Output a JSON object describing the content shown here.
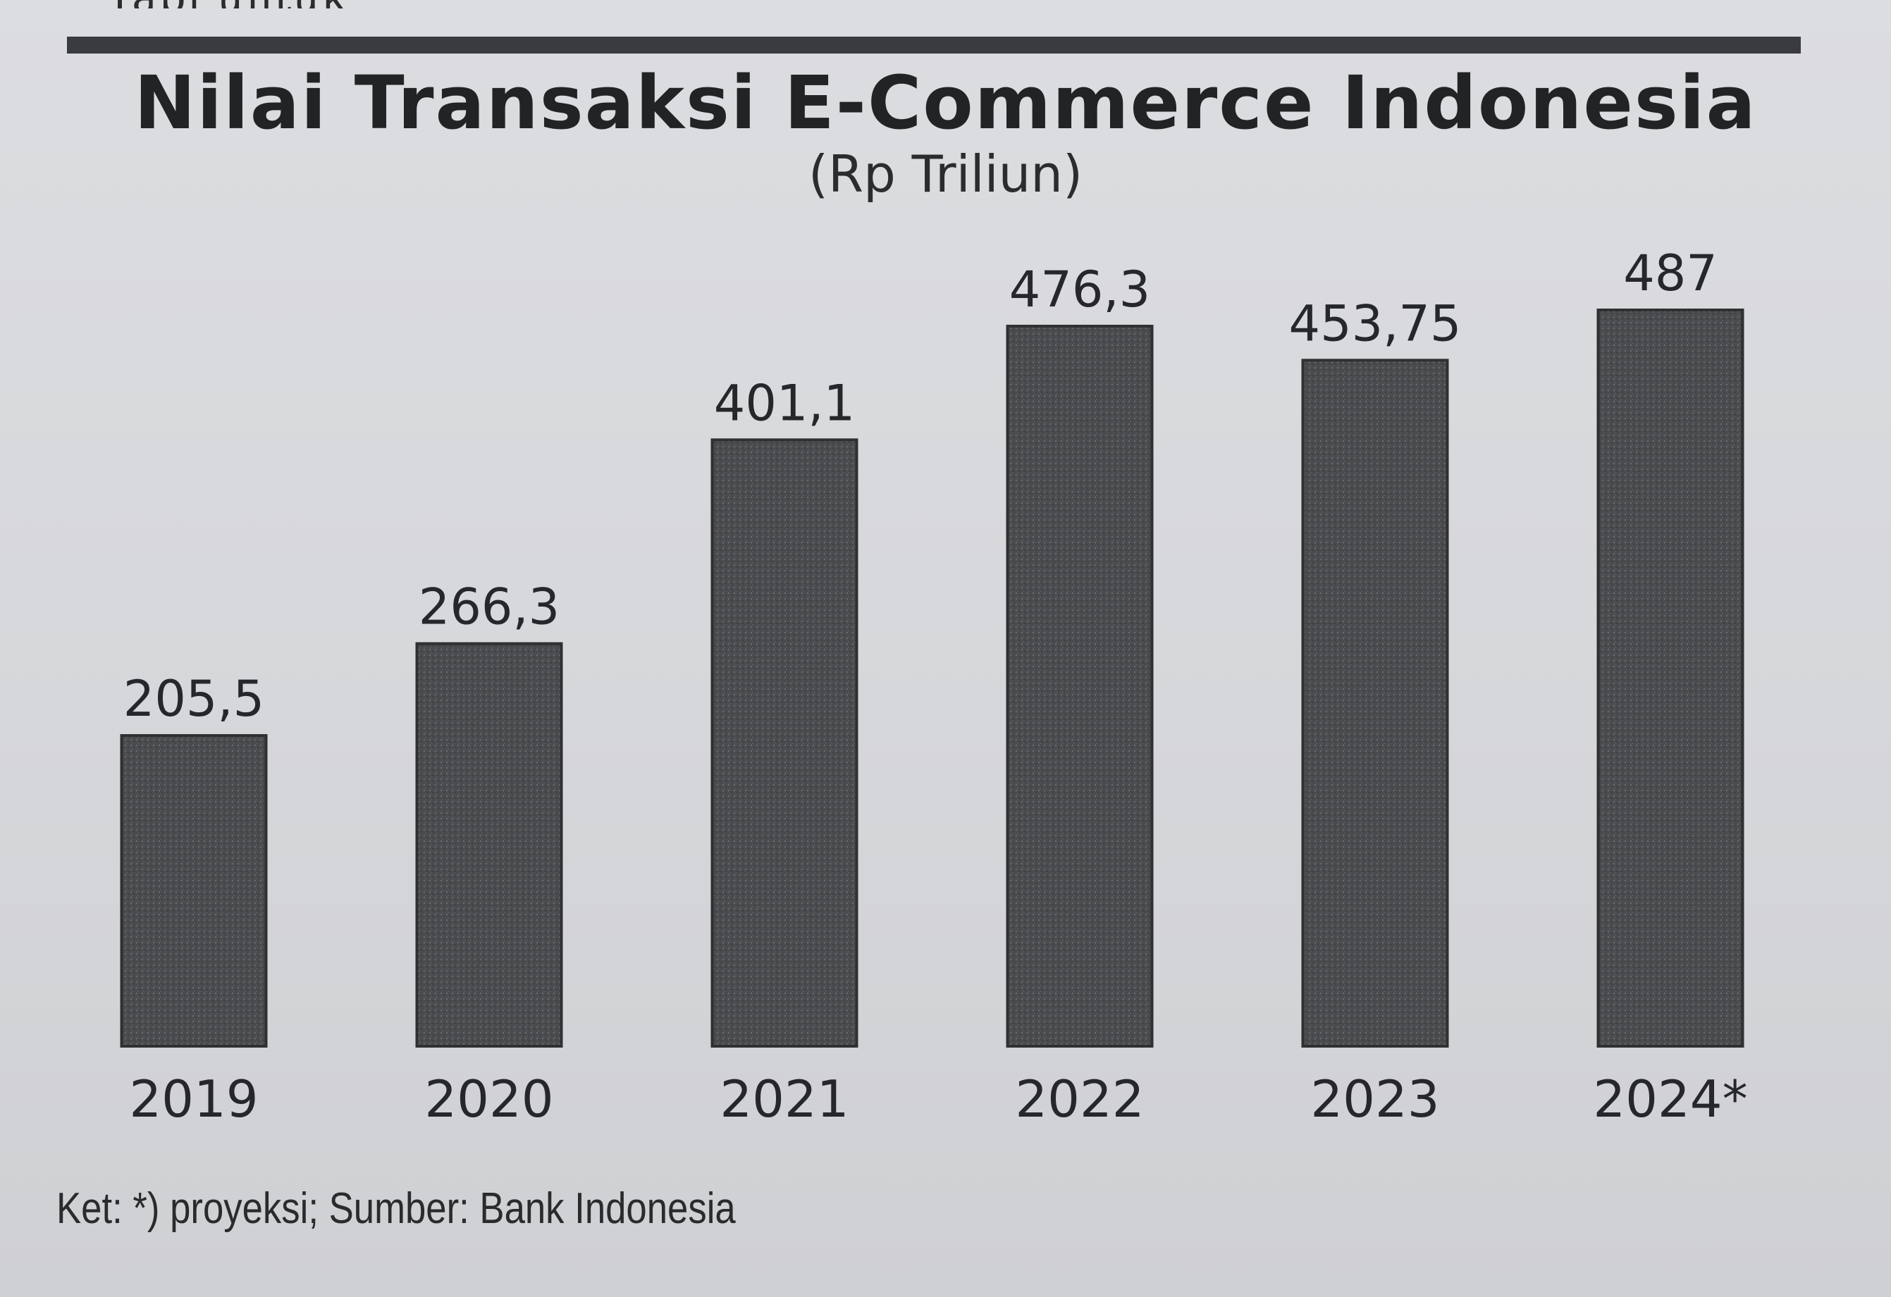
{
  "header": {
    "cut_text": "Tapi untuk"
  },
  "chart_data": {
    "type": "bar",
    "title": "Nilai Transaksi E-Commerce Indonesia",
    "subtitle": "(Rp Triliun)",
    "categories": [
      "2019",
      "2020",
      "2021",
      "2022",
      "2023",
      "2024*"
    ],
    "values": [
      205.5,
      266.3,
      401.1,
      476.3,
      453.75,
      487
    ],
    "value_labels": [
      "205,5",
      "266,3",
      "401,1",
      "476,3",
      "453,75",
      "487"
    ],
    "xlabel": "",
    "ylabel": "",
    "grid": false,
    "bar_color": "#4a4b4e"
  },
  "footnote": "Ket: *) proyeksi; Sumber: Bank Indonesia",
  "colors": {
    "background": "#d9dadd",
    "text": "#222325",
    "rule": "#3a3b3e"
  }
}
